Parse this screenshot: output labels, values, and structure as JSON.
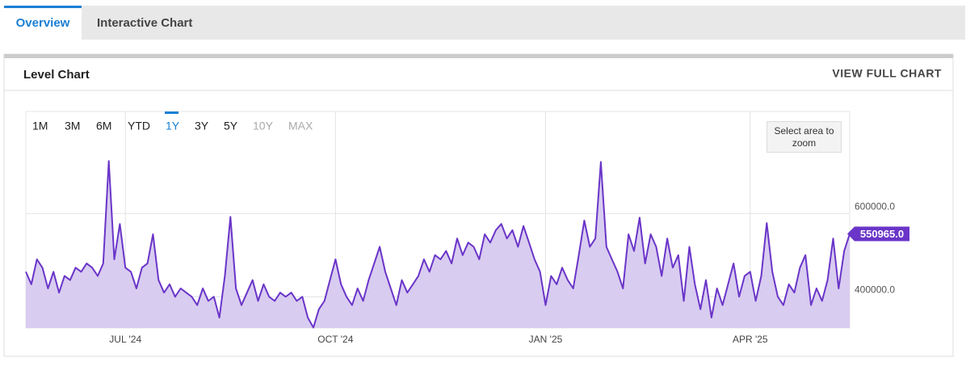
{
  "tabs": [
    {
      "label": "Overview",
      "active": true
    },
    {
      "label": "Interactive Chart",
      "active": false
    }
  ],
  "panel": {
    "title": "Level Chart",
    "link": "VIEW FULL CHART"
  },
  "range_buttons": [
    {
      "label": "1M"
    },
    {
      "label": "3M"
    },
    {
      "label": "6M"
    },
    {
      "label": "YTD"
    },
    {
      "label": "1Y",
      "active": true
    },
    {
      "label": "3Y"
    },
    {
      "label": "5Y"
    },
    {
      "label": "10Y",
      "disabled": true
    },
    {
      "label": "MAX",
      "disabled": true
    }
  ],
  "zoom_hint": "Select area to zoom",
  "chart_data": {
    "type": "area",
    "color": "#6a35c8",
    "fill_color": "#d8ccf0",
    "categories": [
      null,
      null,
      null,
      null,
      null,
      null,
      null,
      null,
      null,
      null,
      null,
      null,
      null,
      null,
      null,
      null,
      null,
      null,
      "JUL '24",
      null,
      null,
      null,
      null,
      null,
      null,
      null,
      null,
      null,
      null,
      null,
      null,
      null,
      null,
      null,
      null,
      null,
      null,
      null,
      null,
      null,
      null,
      null,
      null,
      null,
      null,
      null,
      null,
      null,
      null,
      null,
      null,
      null,
      null,
      null,
      null,
      null,
      "OCT '24",
      null,
      null,
      null,
      null,
      null,
      null,
      null,
      null,
      null,
      null,
      null,
      null,
      null,
      null,
      null,
      null,
      null,
      null,
      null,
      null,
      null,
      null,
      null,
      null,
      null,
      null,
      null,
      null,
      null,
      null,
      null,
      null,
      null,
      null,
      null,
      null,
      null,
      "JAN '25",
      null,
      null,
      null,
      null,
      null,
      null,
      null,
      null,
      null,
      null,
      null,
      null,
      null,
      null,
      null,
      null,
      null,
      null,
      null,
      null,
      null,
      null,
      null,
      null,
      null,
      null,
      null,
      null,
      null,
      null,
      null,
      null,
      null,
      null,
      null,
      null,
      "APR '25",
      null,
      null,
      null,
      null,
      null,
      null,
      null,
      null,
      null,
      null,
      null,
      null,
      null,
      null,
      null,
      null,
      null,
      null
    ],
    "values": [
      460000,
      430000,
      490000,
      470000,
      420000,
      460000,
      410000,
      450000,
      440000,
      470000,
      460000,
      480000,
      470000,
      450000,
      480000,
      726000,
      490000,
      575000,
      470000,
      460000,
      420000,
      470000,
      480000,
      550000,
      440000,
      410000,
      430000,
      400000,
      420000,
      410000,
      400000,
      380000,
      420000,
      390000,
      400000,
      350000,
      450000,
      592000,
      420000,
      380000,
      410000,
      440000,
      390000,
      430000,
      400000,
      390000,
      410000,
      400000,
      410000,
      390000,
      400000,
      350000,
      326000,
      370000,
      390000,
      440000,
      490000,
      430000,
      400000,
      380000,
      420000,
      390000,
      440000,
      480000,
      520000,
      460000,
      420000,
      380000,
      440000,
      410000,
      430000,
      450000,
      490000,
      460000,
      500000,
      490000,
      510000,
      480000,
      540000,
      500000,
      530000,
      520000,
      490000,
      550000,
      530000,
      560000,
      575000,
      540000,
      560000,
      520000,
      570000,
      530000,
      490000,
      460000,
      380000,
      450000,
      430000,
      470000,
      440000,
      420000,
      500000,
      583000,
      520000,
      540000,
      724000,
      520000,
      490000,
      460000,
      420000,
      550000,
      510000,
      590000,
      480000,
      550000,
      520000,
      450000,
      540000,
      470000,
      500000,
      390000,
      520000,
      430000,
      370000,
      440000,
      350000,
      420000,
      380000,
      430000,
      480000,
      400000,
      450000,
      460000,
      390000,
      450000,
      577000,
      460000,
      400000,
      380000,
      430000,
      410000,
      470000,
      500000,
      380000,
      420000,
      390000,
      440000,
      540000,
      420000,
      510000,
      550965
    ],
    "value_labels": [
      null,
      null,
      null,
      null,
      null,
      null,
      null,
      null,
      null,
      null,
      null,
      null,
      null,
      null,
      null,
      null,
      null,
      null,
      null,
      null,
      null,
      null,
      null,
      null,
      null,
      null,
      null,
      null,
      null,
      null,
      null,
      null,
      null,
      null,
      null,
      null,
      null,
      null,
      null,
      null,
      null,
      null,
      null,
      null,
      null,
      null,
      null,
      null,
      null,
      null,
      null,
      null,
      null,
      null,
      null,
      null,
      null,
      null,
      null,
      null,
      null,
      null,
      null,
      null,
      null,
      null,
      null,
      null,
      null,
      null,
      null,
      null,
      null,
      null,
      null,
      null,
      null,
      null,
      null,
      null,
      null,
      null,
      null,
      null,
      null,
      null,
      null,
      null,
      null,
      null,
      null,
      null,
      null,
      null,
      null,
      null,
      null,
      null,
      null,
      null,
      null,
      null,
      null,
      null,
      null,
      null,
      null,
      null,
      null,
      null,
      null,
      null,
      null,
      null,
      null,
      null,
      null,
      null,
      null,
      null,
      null,
      null,
      null,
      null,
      null,
      null,
      null,
      null,
      null,
      null,
      null,
      null,
      null,
      null,
      null,
      null,
      null,
      null,
      null,
      null,
      null,
      null,
      null,
      null,
      null,
      null,
      null,
      null,
      null,
      "550965.0"
    ],
    "ylim": [
      325000,
      845000
    ],
    "yticks": [
      {
        "value": 400000,
        "label": "400000.0"
      },
      {
        "value": 600000,
        "label": "600000.0"
      }
    ],
    "grid": true
  }
}
